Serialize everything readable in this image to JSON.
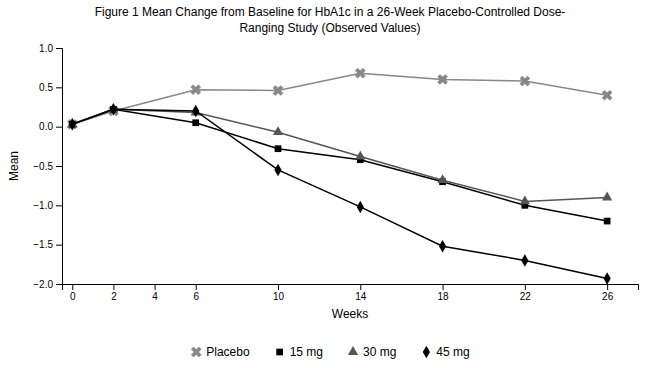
{
  "chart_data": {
    "type": "line",
    "title": "Figure 1 Mean Change from Baseline for HbA1c in a 26-Week Placebo-Controlled Dose-",
    "subtitle": "Ranging Study (Observed Values)",
    "x_label": "Weeks",
    "y_label": "Mean",
    "x": [
      0,
      2,
      6,
      10,
      14,
      18,
      22,
      26
    ],
    "xlim": [
      -0.5,
      27.5
    ],
    "xticks": [
      0,
      2,
      4,
      6,
      10,
      14,
      18,
      22,
      26
    ],
    "ylim": [
      -2.0,
      1.0
    ],
    "yticks": [
      {
        "value": -2.0,
        "label": "−2.0"
      },
      {
        "value": -1.5,
        "label": "−1.5"
      },
      {
        "value": -1.0,
        "label": "−1.0"
      },
      {
        "value": -0.5,
        "label": "−0.5"
      },
      {
        "value": 0.0,
        "label": "0.0"
      },
      0.5,
      {
        "value": 1.0,
        "label": "1.0"
      }
    ],
    "legend": "bottom",
    "series": [
      {
        "name": "Placebo",
        "color": "#888888",
        "marker": "x",
        "values": [
          0.03,
          0.2,
          0.47,
          0.46,
          0.68,
          0.6,
          0.58,
          0.4
        ]
      },
      {
        "name": "15 mg",
        "color": "#000000",
        "marker": "square",
        "values": [
          0.03,
          0.22,
          0.05,
          -0.28,
          -0.42,
          -0.7,
          -1.0,
          -1.2
        ]
      },
      {
        "name": "30 mg",
        "color": "#555555",
        "marker": "triangle",
        "values": [
          0.03,
          0.22,
          0.18,
          -0.07,
          -0.38,
          -0.68,
          -0.95,
          -0.9
        ]
      },
      {
        "name": "45 mg",
        "color": "#000000",
        "marker": "diamond",
        "values": [
          0.03,
          0.22,
          0.2,
          -0.55,
          -1.02,
          -1.52,
          -1.7,
          -1.93
        ]
      }
    ]
  }
}
